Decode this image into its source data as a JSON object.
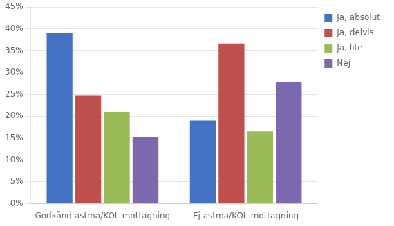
{
  "chart_data": {
    "type": "bar",
    "categories": [
      "Godkänd astma/KOL-mottagning",
      "Ej astma/KOL-mottagning"
    ],
    "series": [
      {
        "name": "Ja, absolut",
        "values": [
          0.39,
          0.19
        ],
        "color": "#4472C4"
      },
      {
        "name": "Ja, delvis",
        "values": [
          0.247,
          0.367
        ],
        "color": "#C0504D"
      },
      {
        "name": "Ja, lite",
        "values": [
          0.21,
          0.165
        ],
        "color": "#9BBB59"
      },
      {
        "name": "Nej",
        "values": [
          0.153,
          0.278
        ],
        "color": "#7B68AE"
      }
    ],
    "ylim": [
      0,
      0.45
    ],
    "yticks": [
      {
        "value": 0.0,
        "label": "0%"
      },
      {
        "value": 0.05,
        "label": "5%"
      },
      {
        "value": 0.1,
        "label": "10%"
      },
      {
        "value": 0.15,
        "label": "15%"
      },
      {
        "value": 0.2,
        "label": "20%"
      },
      {
        "value": 0.25,
        "label": "25%"
      },
      {
        "value": 0.3,
        "label": "30%"
      },
      {
        "value": 0.35,
        "label": "35%"
      },
      {
        "value": 0.4,
        "label": "40%"
      },
      {
        "value": 0.45,
        "label": "45%"
      }
    ],
    "grid": true,
    "legend": "right"
  }
}
